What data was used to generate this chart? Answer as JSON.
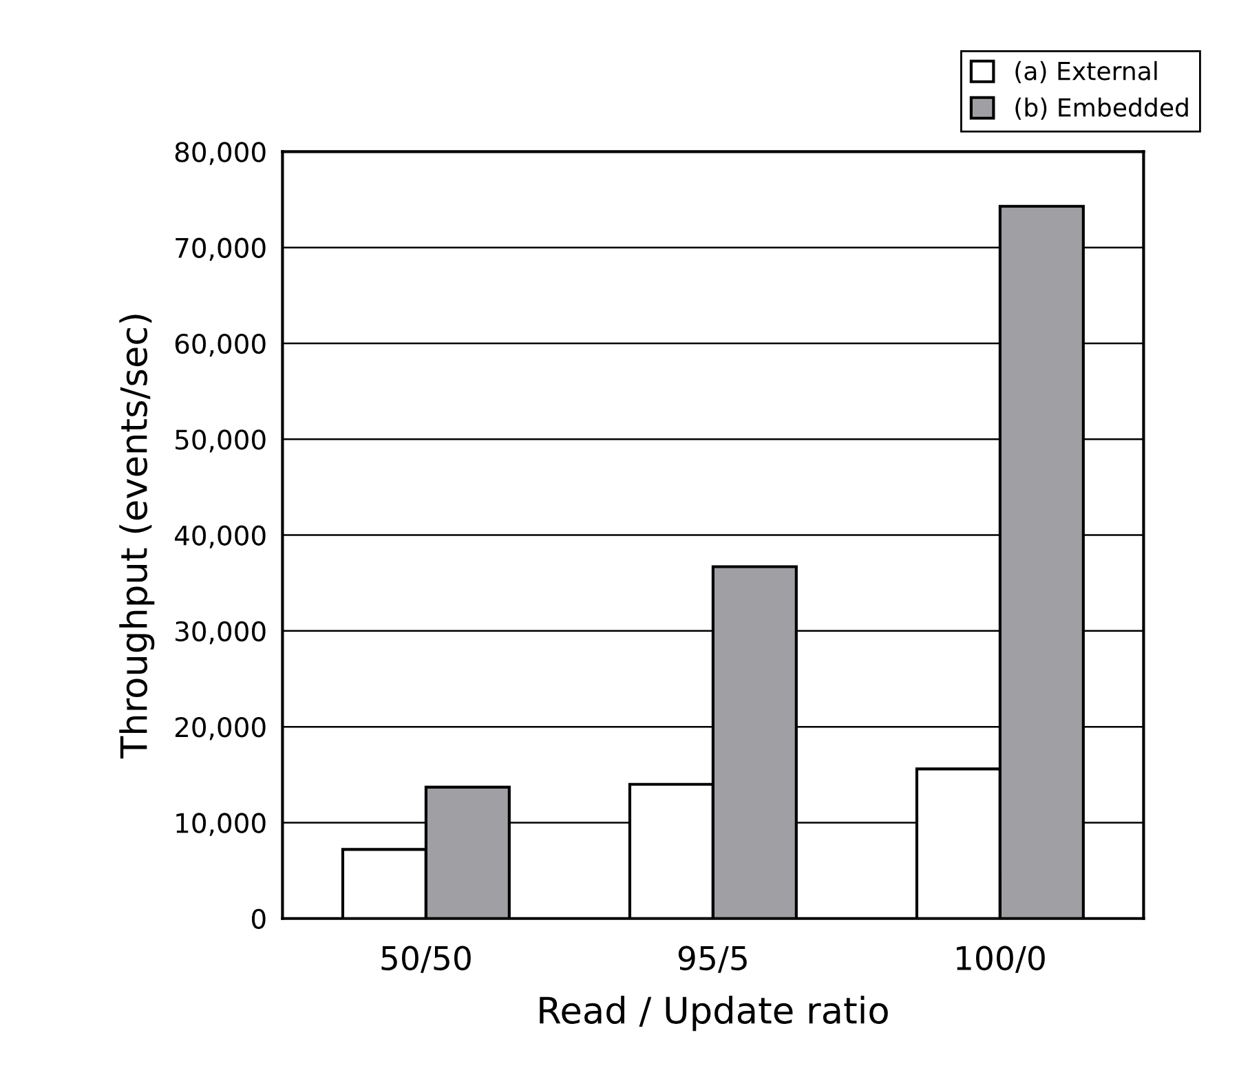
{
  "chart_data": {
    "type": "bar",
    "xlabel": "Read / Update ratio",
    "ylabel": "Throughput (events/sec)",
    "categories": [
      "50/50",
      "95/5",
      "100/0"
    ],
    "series": [
      {
        "name": "(a) External",
        "color": "#ffffff",
        "values": [
          7200,
          14000,
          15600
        ]
      },
      {
        "name": "(b) Embedded",
        "color": "#a0a0a4",
        "values": [
          13700,
          36700,
          74300
        ]
      }
    ],
    "ylim": [
      0,
      80000
    ],
    "yticks": [
      {
        "value": 0,
        "label": "0"
      },
      {
        "value": 10000,
        "label": "10,000"
      },
      {
        "value": 20000,
        "label": "20,000"
      },
      {
        "value": 30000,
        "label": "30,000"
      },
      {
        "value": 40000,
        "label": "40,000"
      },
      {
        "value": 50000,
        "label": "50,000"
      },
      {
        "value": 60000,
        "label": "60,000"
      },
      {
        "value": 70000,
        "label": "70,000"
      },
      {
        "value": 80000,
        "label": "80,000"
      }
    ],
    "grid": "y",
    "legend": "top right"
  }
}
